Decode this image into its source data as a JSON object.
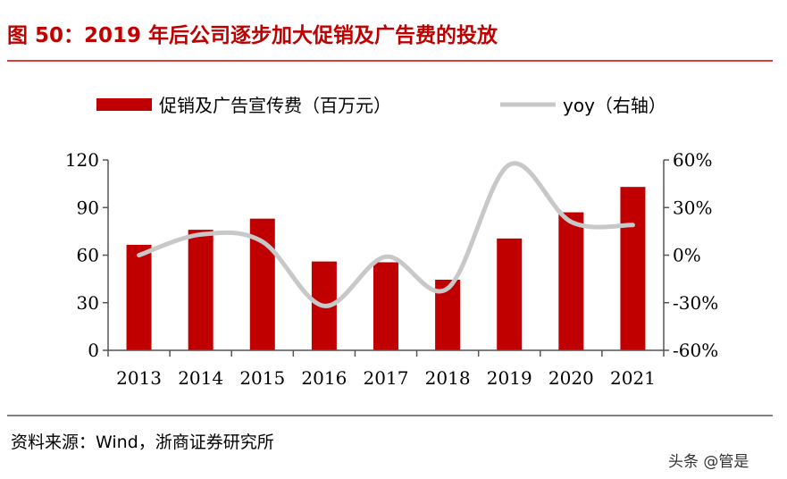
{
  "title": "图 50：2019 年后公司逐步加大促销及广告费的投放",
  "source": "资料来源：Wind，浙商证券研究所",
  "watermark": "头条 @管是",
  "chart_data": {
    "type": "bar+line",
    "categories": [
      "2013",
      "2014",
      "2015",
      "2016",
      "2017",
      "2018",
      "2019",
      "2020",
      "2021"
    ],
    "series": [
      {
        "name": "促销及广告宣传费（百万元）",
        "type": "bar",
        "axis": "left",
        "color": "#c00000",
        "values": [
          66.5,
          76,
          83,
          56,
          55.5,
          44.5,
          70.5,
          87,
          103
        ]
      },
      {
        "name": "yoy（右轴）",
        "type": "line",
        "axis": "right",
        "color": "#c8c8c8",
        "values": [
          0,
          13,
          8.5,
          -32,
          -1,
          -21,
          57,
          21,
          19
        ]
      }
    ],
    "left_axis": {
      "ylim": [
        0,
        120
      ],
      "ticks": [
        "0",
        "30",
        "60",
        "90",
        "120"
      ]
    },
    "right_axis": {
      "ylim": [
        -60,
        60
      ],
      "ticks": [
        "-60%",
        "-30%",
        "0%",
        "30%",
        "60%"
      ]
    },
    "legend": "top",
    "grid": false
  }
}
